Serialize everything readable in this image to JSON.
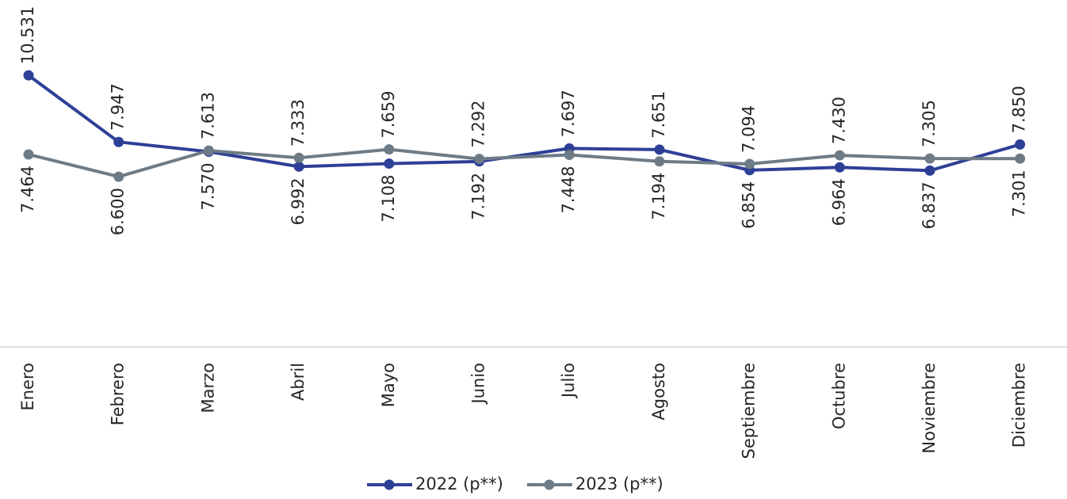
{
  "chart_data": {
    "type": "line",
    "categories": [
      "Enero",
      "Febrero",
      "Marzo",
      "Abril",
      "Mayo",
      "Junio",
      "Julio",
      "Agosto",
      "Septiembre",
      "Octubre",
      "Noviembre",
      "Diciembre"
    ],
    "series": [
      {
        "name": "2022 (p**)",
        "color": "#2e3f97",
        "values": [
          10.531,
          7.947,
          7.57,
          6.992,
          7.108,
          7.192,
          7.697,
          7.651,
          6.854,
          6.964,
          6.837,
          7.85
        ],
        "value_labels": [
          "10.531",
          "7.947",
          "7.570",
          "6.992",
          "7.108",
          "7.192",
          "7.697",
          "7.651",
          "6.854",
          "6.964",
          "6.837",
          "7.850"
        ]
      },
      {
        "name": "2023 (p**)",
        "color": "#6d7b86",
        "values": [
          7.464,
          6.6,
          7.613,
          7.333,
          7.659,
          7.292,
          7.448,
          7.194,
          7.094,
          7.43,
          7.305,
          7.301
        ],
        "value_labels": [
          "7.464",
          "6.600",
          "7.613",
          "7.333",
          "7.659",
          "7.292",
          "7.448",
          "7.194",
          "7.094",
          "7.430",
          "7.305",
          "7.301"
        ]
      }
    ],
    "ylim": [
      0,
      12
    ],
    "legend": "bottom"
  }
}
